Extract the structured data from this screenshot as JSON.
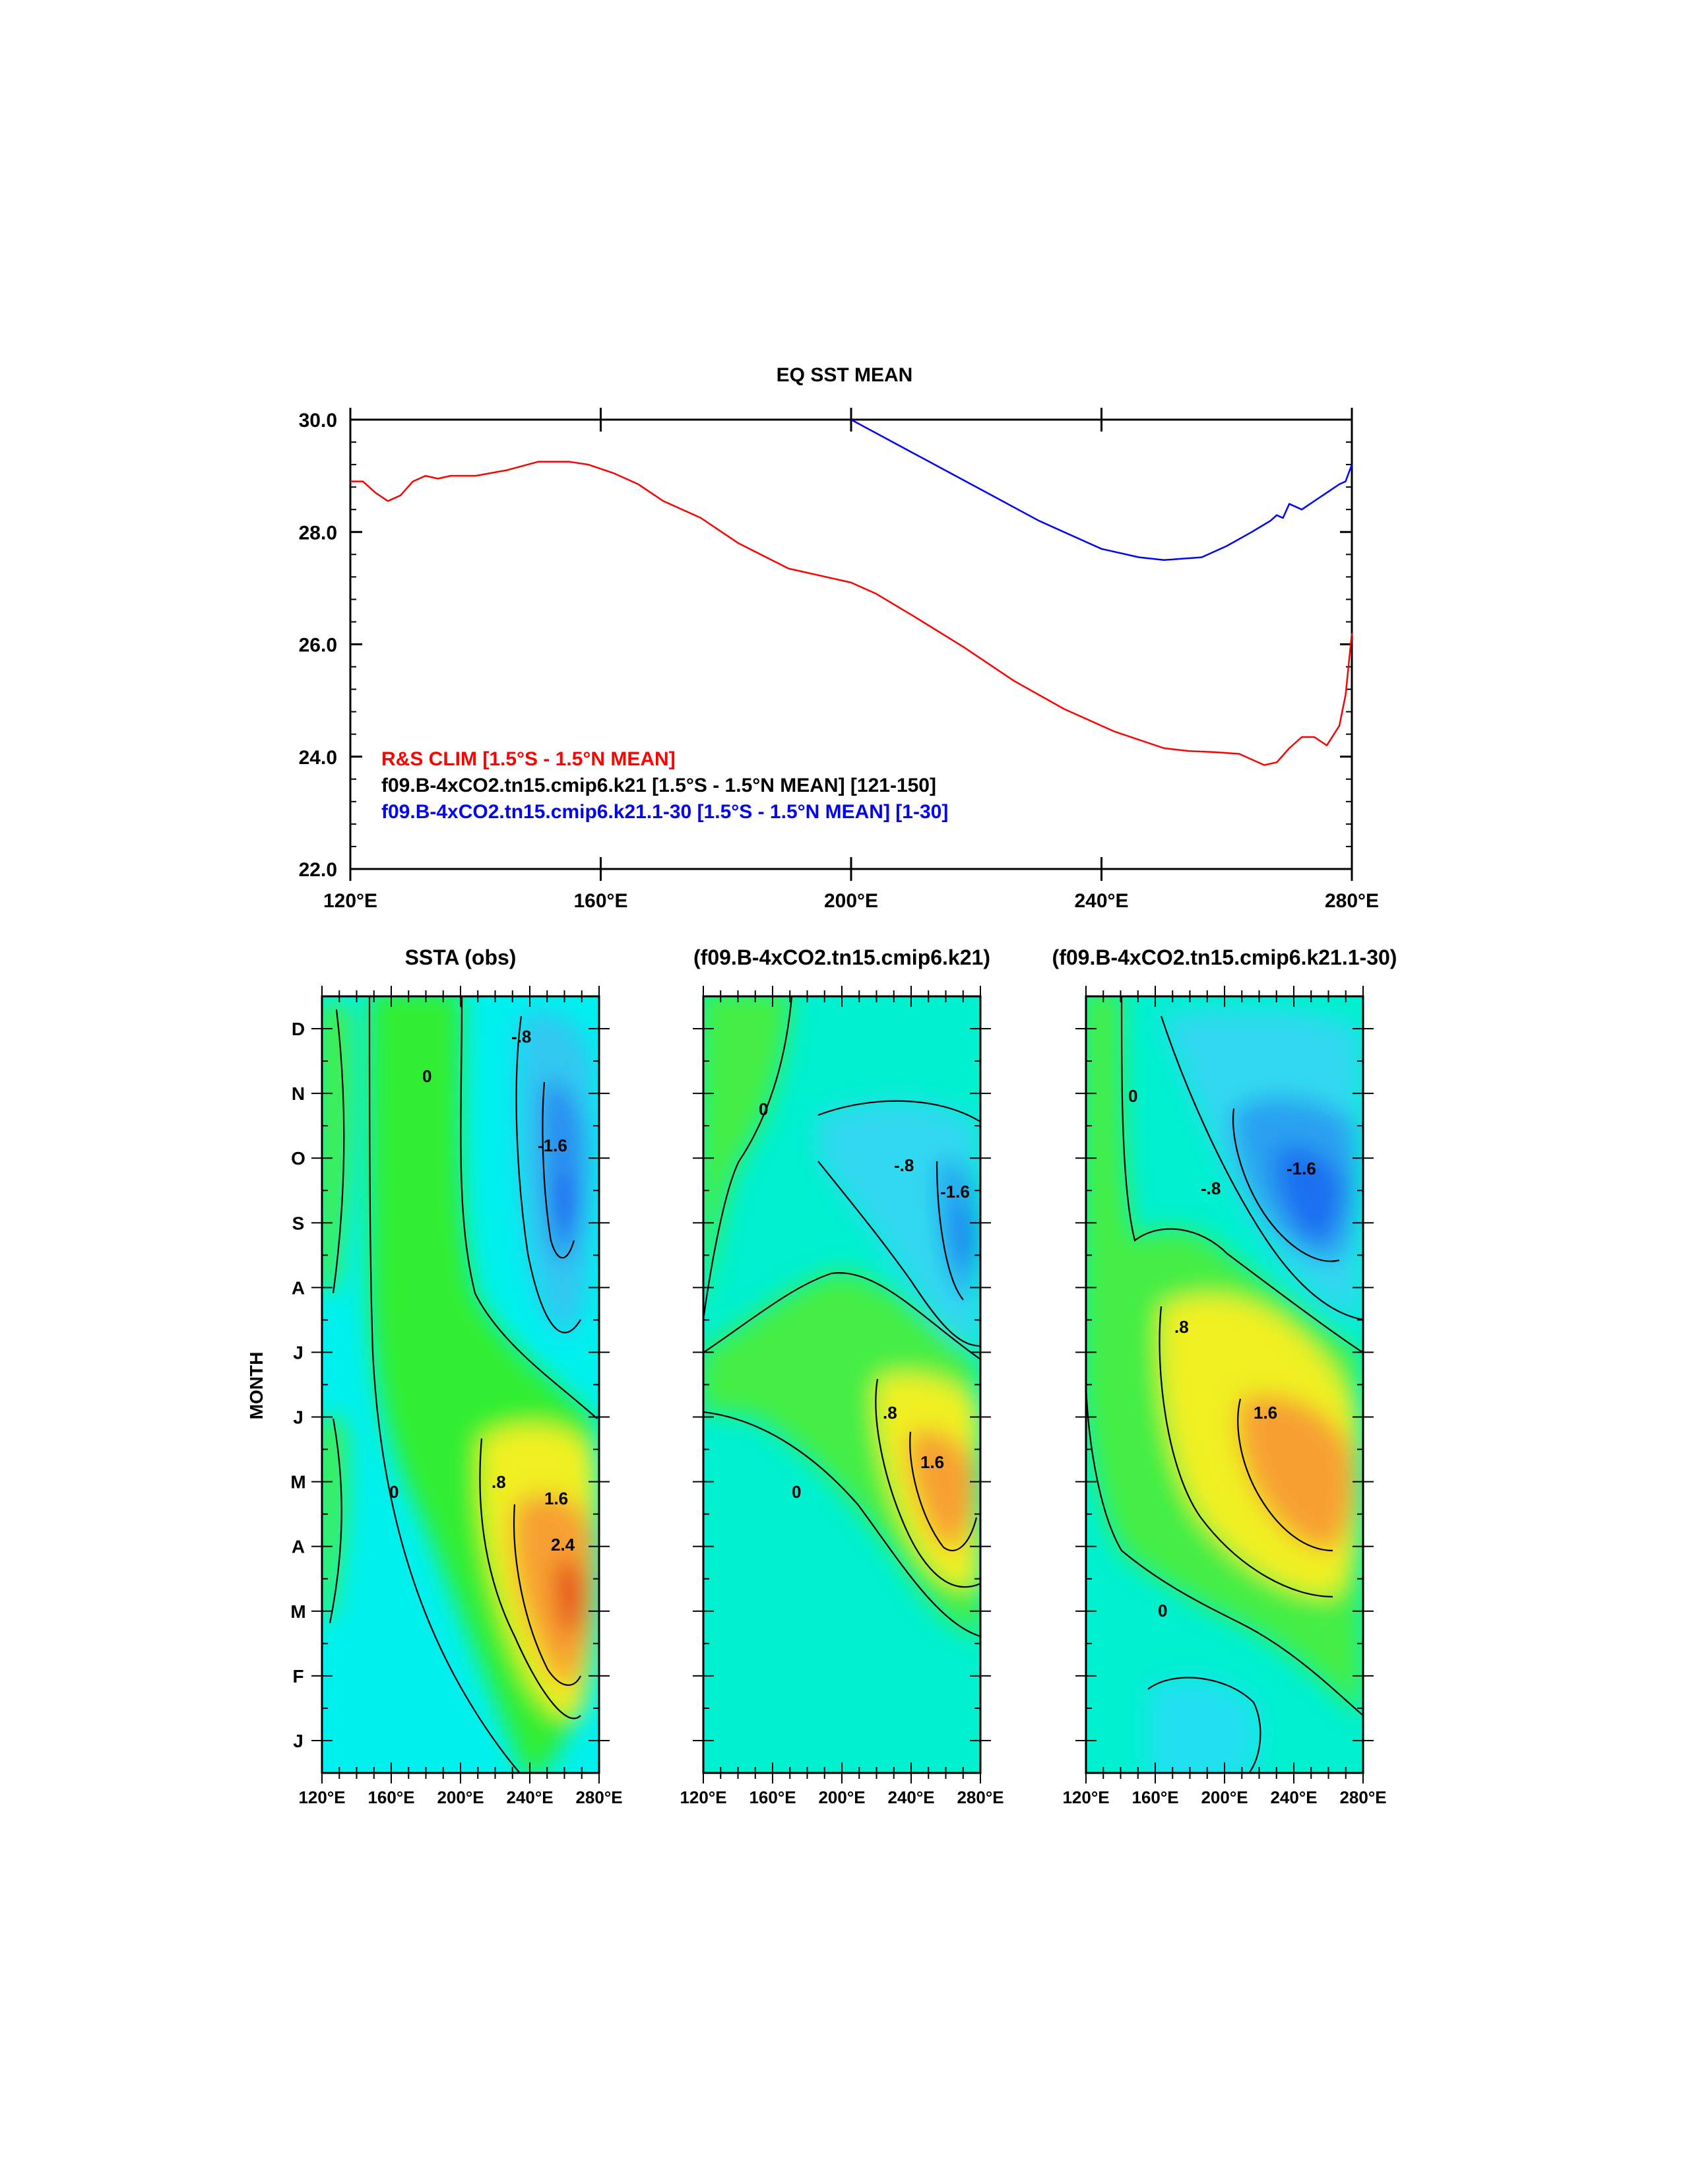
{
  "chart_data": [
    {
      "type": "line",
      "title": "EQ SST MEAN",
      "xlabel": "",
      "ylabel": "",
      "xlim": [
        120,
        280
      ],
      "ylim": [
        22,
        30
      ],
      "x_ticks": [
        120,
        160,
        200,
        240,
        280
      ],
      "x_tick_labels": [
        "120°E",
        "160°E",
        "200°E",
        "240°E",
        "280°E"
      ],
      "y_ticks": [
        22,
        24,
        26,
        28,
        30
      ],
      "y_tick_labels": [
        "22.0",
        "24.0",
        "26.0",
        "28.0",
        "30.0"
      ],
      "legend_placement": "bottom-left",
      "legend": [
        {
          "label": "R&S CLIM [1.5°S - 1.5°N MEAN]",
          "color": "#ff0000"
        },
        {
          "label": "f09.B-4xCO2.tn15.cmip6.k21 [1.5°S - 1.5°N MEAN] [121-150]",
          "color": "#000000"
        },
        {
          "label": "f09.B-4xCO2.tn15.cmip6.k21.1-30 [1.5°S - 1.5°N MEAN] [1-30]",
          "color": "#0000ff"
        }
      ],
      "series": [
        {
          "name": "R&S CLIM [1.5°S - 1.5°N MEAN]",
          "color": "#ff0000",
          "x": [
            120,
            122,
            124,
            126,
            128,
            130,
            132,
            134,
            136,
            140,
            145,
            150,
            155,
            158,
            162,
            166,
            170,
            176,
            182,
            190,
            200,
            204,
            210,
            218,
            226,
            234,
            242,
            250,
            254,
            258,
            262,
            266,
            268,
            270,
            272,
            274,
            276,
            278,
            279,
            280
          ],
          "y": [
            28.9,
            28.9,
            28.7,
            28.55,
            28.65,
            28.9,
            29.0,
            28.95,
            29.0,
            29.0,
            29.1,
            29.25,
            29.25,
            29.2,
            29.05,
            28.85,
            28.55,
            28.25,
            27.8,
            27.35,
            27.1,
            26.9,
            26.5,
            25.95,
            25.35,
            24.85,
            24.45,
            24.15,
            24.1,
            24.08,
            24.05,
            23.85,
            23.9,
            24.15,
            24.35,
            24.35,
            24.2,
            24.55,
            25.1,
            26.2
          ]
        },
        {
          "name": "f09.B-4xCO2.tn15.cmip6.k21 [1.5°S - 1.5°N MEAN] [121-150]",
          "color": "#000000",
          "x": [],
          "y": []
        },
        {
          "name": "f09.B-4xCO2.tn15.cmip6.k21.1-30 [1.5°S - 1.5°N MEAN] [1-30]",
          "color": "#0000ff",
          "x": [
            200,
            210,
            220,
            230,
            240,
            246,
            250,
            256,
            260,
            264,
            267,
            268,
            269,
            270,
            272,
            274,
            276,
            278,
            279,
            280
          ],
          "y": [
            30.0,
            29.4,
            28.8,
            28.2,
            27.7,
            27.55,
            27.5,
            27.55,
            27.75,
            28.0,
            28.2,
            28.3,
            28.25,
            28.5,
            28.4,
            28.55,
            28.7,
            28.85,
            28.9,
            29.2
          ]
        }
      ]
    },
    {
      "type": "heatmap",
      "title": "SSTA (obs)",
      "ylabel": "MONTH",
      "xlim": [
        120,
        280
      ],
      "x_tick_labels": [
        "120°E",
        "160°E",
        "200°E",
        "240°E",
        "280°E"
      ],
      "y_tick_labels": [
        "J",
        "F",
        "M",
        "A",
        "M",
        "J",
        "J",
        "A",
        "S",
        "O",
        "N",
        "D"
      ],
      "contour_labels": [
        "0",
        ".8",
        "1.6",
        "2.4",
        "-.8",
        "-1.6"
      ],
      "features": [
        {
          "label": "warm max",
          "lon": 263,
          "month": 3,
          "value": 3.0
        },
        {
          "label": "cold min",
          "lon": 262,
          "month": 9,
          "value": -2.2
        }
      ]
    },
    {
      "type": "heatmap",
      "title": "(f09.B-4xCO2.tn15.cmip6.k21)",
      "xlim": [
        120,
        280
      ],
      "x_tick_labels": [
        "120°E",
        "160°E",
        "200°E",
        "240°E",
        "280°E"
      ],
      "contour_labels": [
        "0",
        ".8",
        "1.6",
        "-.8",
        "-1.6"
      ],
      "features": [
        {
          "label": "warm max",
          "lon": 262,
          "month": 5,
          "value": 1.9
        },
        {
          "label": "cold min",
          "lon": 268,
          "month": 9,
          "value": -1.9
        }
      ]
    },
    {
      "type": "heatmap",
      "title": "(f09.B-4xCO2.tn15.cmip6.k21.1-30)",
      "xlim": [
        120,
        280
      ],
      "x_tick_labels": [
        "120°E",
        "160°E",
        "200°E",
        "240°E",
        "280°E"
      ],
      "contour_labels": [
        "0",
        ".8",
        "1.6",
        "-.8",
        "-1.6"
      ],
      "features": [
        {
          "label": "warm max",
          "lon": 248,
          "month": 5,
          "value": 2.3
        },
        {
          "label": "cold min",
          "lon": 248,
          "month": 9.5,
          "value": -2.2
        }
      ]
    }
  ],
  "colors": {
    "background": "#ffffff",
    "axis": "#000000"
  }
}
